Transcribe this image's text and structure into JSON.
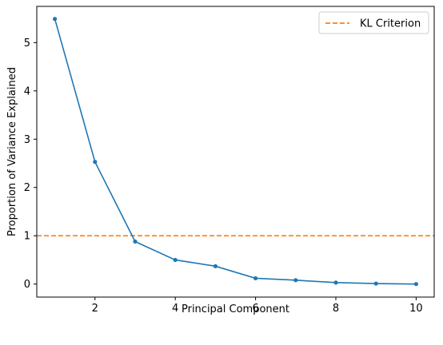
{
  "chart_data": {
    "type": "line",
    "title": "",
    "xlabel": "Principal Component",
    "ylabel": "Proportion of Variance Explained",
    "xlim": [
      0.55,
      10.45
    ],
    "ylim": [
      -0.27,
      5.75
    ],
    "x_ticks": [
      2,
      4,
      6,
      8,
      10
    ],
    "y_ticks": [
      0,
      1,
      2,
      3,
      4,
      5
    ],
    "grid": false,
    "legend_position": "top-right",
    "series": [
      {
        "x": [
          1,
          2,
          3,
          4,
          5,
          6,
          7,
          8,
          9,
          10
        ],
        "values": [
          5.49,
          2.53,
          0.88,
          0.5,
          0.37,
          0.12,
          0.08,
          0.03,
          0.01,
          0.0
        ],
        "color": "#1f77b4",
        "style": "solid line with dot markers"
      },
      {
        "name": "KL Criterion",
        "type": "horizontal-line",
        "y": 1,
        "color": "#ff7f0e",
        "style": "dashed"
      }
    ]
  }
}
